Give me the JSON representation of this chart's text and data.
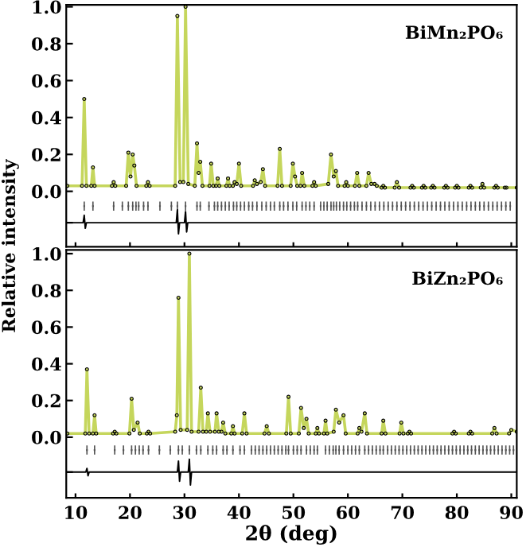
{
  "chart_data": [
    {
      "type": "line",
      "title": "BiMn₂PO₆",
      "ylabel": "Relative intensity",
      "tick_labels": "y",
      "xlim": [
        8.3,
        91
      ],
      "xticks": [
        10,
        20,
        30,
        40,
        50,
        60,
        70,
        80,
        90
      ],
      "ylim": [
        -0.3,
        1.01
      ],
      "yticks": [
        {
          "value": -0.17,
          "label": null
        },
        {
          "value": 0,
          "label": "0.0"
        },
        {
          "value": 0.2,
          "label": "0.2"
        },
        {
          "value": 0.4,
          "label": "0.4"
        },
        {
          "value": 0.6,
          "label": "0.6"
        },
        {
          "value": 0.8,
          "label": "0.8"
        },
        {
          "value": 1.0,
          "label": "1.0"
        }
      ],
      "series": [
        {
          "type": "line",
          "color": "#c5d65c",
          "x": [
            8.5,
            11.2,
            11.6,
            12.0,
            12.9,
            13.2,
            13.5,
            16.7,
            17.0,
            17.3,
            19.3,
            19.7,
            20.1,
            20.5,
            20.8,
            21.2,
            23.0,
            23.3,
            23.6,
            28.3,
            28.7,
            29.2,
            29.8,
            30.2,
            30.7,
            31.9,
            32.3,
            32.6,
            32.9,
            33.3,
            34.6,
            34.9,
            35.3,
            35.8,
            36.1,
            36.4,
            37.7,
            38.0,
            38.3,
            38.9,
            39.2,
            39.6,
            40.0,
            40.4,
            42.6,
            42.9,
            43.3,
            44.0,
            44.4,
            44.8,
            47.1,
            47.5,
            47.9,
            49.5,
            49.9,
            50.3,
            50.7,
            51.3,
            51.6,
            52.0,
            53.5,
            53.8,
            54.1,
            56.4,
            56.9,
            57.4,
            57.8,
            58.2,
            59.4,
            59.7,
            60.0,
            61.3,
            61.7,
            62.1,
            63.4,
            63.8,
            64.3,
            64.9,
            65.3,
            66.2,
            66.5,
            66.8,
            68.6,
            69.0,
            69.4,
            71.5,
            71.8,
            72.1,
            73.6,
            73.9,
            74.2,
            75.3,
            75.6,
            75.9,
            77.7,
            78.0,
            78.3,
            79.7,
            80.0,
            80.3,
            82.2,
            82.5,
            82.8,
            84.4,
            84.7,
            85.0,
            86.9,
            87.2,
            87.5,
            88.8,
            89.1,
            91
          ],
          "values": [
            0.03,
            0.03,
            0.5,
            0.03,
            0.03,
            0.13,
            0.03,
            0.03,
            0.05,
            0.03,
            0.03,
            0.21,
            0.08,
            0.2,
            0.14,
            0.03,
            0.03,
            0.05,
            0.03,
            0.03,
            0.95,
            0.05,
            0.05,
            1.0,
            0.04,
            0.03,
            0.26,
            0.1,
            0.16,
            0.03,
            0.03,
            0.15,
            0.03,
            0.03,
            0.07,
            0.03,
            0.03,
            0.07,
            0.03,
            0.03,
            0.05,
            0.04,
            0.15,
            0.03,
            0.03,
            0.06,
            0.04,
            0.05,
            0.12,
            0.03,
            0.03,
            0.23,
            0.03,
            0.03,
            0.15,
            0.08,
            0.03,
            0.03,
            0.1,
            0.03,
            0.03,
            0.05,
            0.03,
            0.04,
            0.2,
            0.08,
            0.11,
            0.03,
            0.03,
            0.05,
            0.03,
            0.03,
            0.1,
            0.03,
            0.03,
            0.1,
            0.04,
            0.04,
            0.03,
            0.02,
            0.03,
            0.02,
            0.02,
            0.05,
            0.02,
            0.02,
            0.03,
            0.02,
            0.02,
            0.03,
            0.02,
            0.02,
            0.03,
            0.02,
            0.02,
            0.03,
            0.02,
            0.02,
            0.03,
            0.02,
            0.02,
            0.03,
            0.02,
            0.02,
            0.04,
            0.02,
            0.02,
            0.03,
            0.02,
            0.02,
            0.02,
            0.02
          ]
        },
        {
          "type": "scatter",
          "marker": "circle",
          "color": "#000000",
          "x": [
            8.5,
            11.2,
            11.6,
            12.0,
            12.9,
            13.2,
            13.5,
            16.7,
            17.0,
            17.3,
            19.3,
            19.7,
            20.1,
            20.5,
            20.8,
            21.2,
            23.0,
            23.3,
            23.6,
            28.3,
            28.7,
            29.2,
            29.8,
            30.2,
            30.7,
            31.9,
            32.3,
            32.6,
            32.9,
            33.3,
            34.6,
            34.9,
            35.3,
            35.8,
            36.1,
            36.4,
            37.7,
            38.0,
            38.3,
            38.9,
            39.2,
            39.6,
            40.0,
            40.4,
            42.6,
            42.9,
            43.3,
            44.0,
            44.4,
            44.8,
            47.1,
            47.5,
            47.9,
            49.5,
            49.9,
            50.3,
            50.7,
            51.3,
            51.6,
            52.0,
            53.5,
            53.8,
            54.1,
            56.4,
            56.9,
            57.4,
            57.8,
            58.2,
            59.4,
            59.7,
            60.0,
            61.3,
            61.7,
            62.1,
            63.4,
            63.8,
            64.3,
            64.9,
            65.3,
            66.2,
            66.5,
            66.8,
            68.6,
            69.0,
            69.4,
            71.5,
            71.8,
            72.1,
            73.6,
            73.9,
            74.2,
            75.3,
            75.6,
            75.9,
            77.7,
            78.0,
            78.3,
            79.7,
            80.0,
            80.3,
            82.2,
            82.5,
            82.8,
            84.4,
            84.7,
            85.0,
            86.9,
            87.2,
            87.5,
            88.8,
            89.1,
            91
          ],
          "values": [
            0.03,
            0.03,
            0.5,
            0.03,
            0.03,
            0.13,
            0.03,
            0.03,
            0.05,
            0.03,
            0.03,
            0.21,
            0.08,
            0.2,
            0.14,
            0.03,
            0.03,
            0.05,
            0.03,
            0.03,
            0.95,
            0.05,
            0.05,
            1.0,
            0.04,
            0.03,
            0.26,
            0.1,
            0.16,
            0.03,
            0.03,
            0.15,
            0.03,
            0.03,
            0.07,
            0.03,
            0.03,
            0.07,
            0.03,
            0.03,
            0.05,
            0.04,
            0.15,
            0.03,
            0.03,
            0.06,
            0.04,
            0.05,
            0.12,
            0.03,
            0.03,
            0.23,
            0.03,
            0.03,
            0.15,
            0.08,
            0.03,
            0.03,
            0.1,
            0.03,
            0.03,
            0.05,
            0.03,
            0.04,
            0.2,
            0.08,
            0.11,
            0.03,
            0.03,
            0.05,
            0.03,
            0.03,
            0.1,
            0.03,
            0.03,
            0.1,
            0.04,
            0.04,
            0.03,
            0.02,
            0.03,
            0.02,
            0.02,
            0.05,
            0.02,
            0.02,
            0.03,
            0.02,
            0.02,
            0.03,
            0.02,
            0.02,
            0.03,
            0.02,
            0.02,
            0.03,
            0.02,
            0.02,
            0.03,
            0.02,
            0.02,
            0.03,
            0.02,
            0.02,
            0.04,
            0.02,
            0.02,
            0.03,
            0.02,
            0.02,
            0.02,
            0.02
          ]
        },
        {
          "type": "scatter",
          "marker": "square",
          "color": "#555555",
          "x": [
            11.6,
            13.2,
            17.0,
            18.6,
            19.7,
            20.5,
            21.1,
            21.6,
            22.5,
            23.3,
            25.5,
            27.6,
            28.7,
            30.2,
            32.3,
            32.9,
            34.5,
            35.5,
            36.1,
            36.8,
            37.5,
            38.2,
            39.0,
            39.6,
            40.3,
            41.0,
            41.8,
            42.5,
            43.3,
            44.2,
            45.0,
            45.8,
            46.5,
            47.5,
            48.2,
            49.0,
            49.9,
            50.6,
            51.6,
            52.3,
            53.0,
            53.8,
            55.0,
            55.6,
            56.2,
            56.9,
            57.4,
            57.9,
            58.5,
            59.2,
            59.8,
            60.5,
            61.2,
            61.8,
            62.6,
            63.4,
            64.2,
            65.0,
            65.8,
            66.6,
            67.4,
            68.2,
            69.0,
            69.8,
            70.6,
            71.4,
            72.2,
            73.0,
            73.8,
            74.6,
            75.4,
            76.2,
            77.0,
            77.8,
            78.6,
            79.4,
            80.2,
            81.0,
            81.8,
            82.6,
            83.4,
            84.2,
            85.0,
            85.8,
            86.6,
            87.4,
            88.2,
            89.0,
            89.8
          ],
          "values": [
            -0.08,
            -0.08,
            -0.08,
            -0.08,
            -0.08,
            -0.08,
            -0.08,
            -0.08,
            -0.08,
            -0.08,
            -0.08,
            -0.08,
            -0.08,
            -0.08,
            -0.08,
            -0.08,
            -0.08,
            -0.08,
            -0.08,
            -0.08,
            -0.08,
            -0.08,
            -0.08,
            -0.08,
            -0.08,
            -0.08,
            -0.08,
            -0.08,
            -0.08,
            -0.08,
            -0.08,
            -0.08,
            -0.08,
            -0.08,
            -0.08,
            -0.08,
            -0.08,
            -0.08,
            -0.08,
            -0.08,
            -0.08,
            -0.08,
            -0.08,
            -0.08,
            -0.08,
            -0.08,
            -0.08,
            -0.08,
            -0.08,
            -0.08,
            -0.08,
            -0.08,
            -0.08,
            -0.08,
            -0.08,
            -0.08,
            -0.08,
            -0.08,
            -0.08,
            -0.08,
            -0.08,
            -0.08,
            -0.08,
            -0.08,
            -0.08,
            -0.08,
            -0.08,
            -0.08,
            -0.08,
            -0.08,
            -0.08,
            -0.08,
            -0.08,
            -0.08,
            -0.08,
            -0.08,
            -0.08,
            -0.08,
            -0.08,
            -0.08,
            -0.08,
            -0.08,
            -0.08,
            -0.08,
            -0.08,
            -0.08,
            -0.08,
            -0.08,
            -0.08
          ],
          "errors": [
            0.025,
            0.025,
            0.025,
            0.025,
            0.025,
            0.025,
            0.025,
            0.025,
            0.025,
            0.025,
            0.025,
            0.025,
            0.025,
            0.025,
            0.025,
            0.025,
            0.025,
            0.025,
            0.025,
            0.025,
            0.025,
            0.025,
            0.025,
            0.025,
            0.025,
            0.025,
            0.025,
            0.025,
            0.025,
            0.025,
            0.025,
            0.025,
            0.025,
            0.025,
            0.025,
            0.025,
            0.025,
            0.025,
            0.025,
            0.025,
            0.025,
            0.025,
            0.025,
            0.025,
            0.025,
            0.025,
            0.025,
            0.025,
            0.025,
            0.025,
            0.025,
            0.025,
            0.025,
            0.025,
            0.025,
            0.025,
            0.025,
            0.025,
            0.025,
            0.025,
            0.025,
            0.025,
            0.025,
            0.025,
            0.025,
            0.025,
            0.025,
            0.025,
            0.025,
            0.025,
            0.025,
            0.025,
            0.025,
            0.025,
            0.025,
            0.025,
            0.025,
            0.025,
            0.025,
            0.025,
            0.025,
            0.025,
            0.025,
            0.025,
            0.025,
            0.025,
            0.025,
            0.025,
            0.025
          ]
        },
        {
          "type": "line",
          "color": "#000000",
          "x": [
            8.5,
            11.4,
            11.6,
            11.8,
            12.0,
            28.5,
            28.7,
            28.9,
            29.1,
            30.0,
            30.2,
            30.4,
            30.6,
            91
          ],
          "values": [
            -0.17,
            -0.17,
            -0.13,
            -0.2,
            -0.17,
            -0.17,
            -0.1,
            -0.23,
            -0.17,
            -0.17,
            -0.11,
            -0.22,
            -0.17,
            -0.17
          ]
        }
      ]
    },
    {
      "type": "line",
      "title": "BiZn₂PO₆",
      "xlabel": "2θ (deg)",
      "xlim": [
        8.3,
        91
      ],
      "xticks": [
        10,
        20,
        30,
        40,
        50,
        60,
        70,
        80,
        90
      ],
      "ylim": [
        -0.33,
        1.02
      ],
      "yticks": [
        {
          "value": -0.19,
          "label": null
        },
        {
          "value": 0,
          "label": "0.0"
        },
        {
          "value": 0.2,
          "label": "0.2"
        },
        {
          "value": 0.4,
          "label": "0.4"
        },
        {
          "value": 0.6,
          "label": "0.6"
        },
        {
          "value": 0.8,
          "label": "0.8"
        },
        {
          "value": 1.0,
          "label": "1.0"
        }
      ],
      "series": [
        {
          "type": "line",
          "color": "#c5d65c",
          "x": [
            8.5,
            11.8,
            12.1,
            12.5,
            13.2,
            13.5,
            13.8,
            16.9,
            17.2,
            17.5,
            19.9,
            20.3,
            20.7,
            21.4,
            21.8,
            23.1,
            23.4,
            23.7,
            28.3,
            28.6,
            28.9,
            29.3,
            30.5,
            30.9,
            31.3,
            32.6,
            33.0,
            33.4,
            34.0,
            34.3,
            34.7,
            35.6,
            35.9,
            36.3,
            36.8,
            37.1,
            37.5,
            38.6,
            38.9,
            39.2,
            40.6,
            41.0,
            41.4,
            44.7,
            45.1,
            45.5,
            48.7,
            49.1,
            49.5,
            51.0,
            51.4,
            51.9,
            52.4,
            52.8,
            54.1,
            54.4,
            54.7,
            55.6,
            55.9,
            56.2,
            57.4,
            57.8,
            58.4,
            59.2,
            59.6,
            61.8,
            62.1,
            62.5,
            63.1,
            63.5,
            66.2,
            66.5,
            66.9,
            69.5,
            69.8,
            70.2,
            71.0,
            71.3,
            71.6,
            79.2,
            79.5,
            79.8,
            82.2,
            82.5,
            82.8,
            86.5,
            86.9,
            87.3,
            89.6,
            90.0,
            91
          ],
          "values": [
            0.02,
            0.02,
            0.37,
            0.02,
            0.02,
            0.12,
            0.02,
            0.02,
            0.03,
            0.02,
            0.02,
            0.21,
            0.04,
            0.08,
            0.02,
            0.02,
            0.03,
            0.02,
            0.03,
            0.12,
            0.76,
            0.04,
            0.04,
            1.0,
            0.03,
            0.03,
            0.27,
            0.03,
            0.03,
            0.13,
            0.03,
            0.03,
            0.13,
            0.03,
            0.03,
            0.08,
            0.02,
            0.02,
            0.06,
            0.02,
            0.02,
            0.13,
            0.02,
            0.02,
            0.06,
            0.02,
            0.02,
            0.22,
            0.02,
            0.02,
            0.16,
            0.05,
            0.1,
            0.02,
            0.02,
            0.05,
            0.02,
            0.02,
            0.09,
            0.02,
            0.03,
            0.15,
            0.08,
            0.12,
            0.02,
            0.02,
            0.05,
            0.03,
            0.13,
            0.02,
            0.02,
            0.09,
            0.02,
            0.02,
            0.08,
            0.02,
            0.02,
            0.03,
            0.02,
            0.02,
            0.03,
            0.02,
            0.02,
            0.03,
            0.02,
            0.02,
            0.05,
            0.02,
            0.02,
            0.04,
            0.03
          ]
        },
        {
          "type": "scatter",
          "marker": "circle",
          "color": "#000000",
          "x": [
            8.5,
            11.8,
            12.1,
            12.5,
            13.2,
            13.5,
            13.8,
            16.9,
            17.2,
            17.5,
            19.9,
            20.3,
            20.7,
            21.4,
            21.8,
            23.1,
            23.4,
            23.7,
            28.3,
            28.6,
            28.9,
            29.3,
            30.5,
            30.9,
            31.3,
            32.6,
            33.0,
            33.4,
            34.0,
            34.3,
            34.7,
            35.6,
            35.9,
            36.3,
            36.8,
            37.1,
            37.5,
            38.6,
            38.9,
            39.2,
            40.6,
            41.0,
            41.4,
            44.7,
            45.1,
            45.5,
            48.7,
            49.1,
            49.5,
            51.0,
            51.4,
            51.9,
            52.4,
            52.8,
            54.1,
            54.4,
            54.7,
            55.6,
            55.9,
            56.2,
            57.4,
            57.8,
            58.4,
            59.2,
            59.6,
            61.8,
            62.1,
            62.5,
            63.1,
            63.5,
            66.2,
            66.5,
            66.9,
            69.5,
            69.8,
            70.2,
            71.0,
            71.3,
            71.6,
            79.2,
            79.5,
            79.8,
            82.2,
            82.5,
            82.8,
            86.5,
            86.9,
            87.3,
            89.6,
            90.0,
            91
          ],
          "values": [
            0.02,
            0.02,
            0.37,
            0.02,
            0.02,
            0.12,
            0.02,
            0.02,
            0.03,
            0.02,
            0.02,
            0.21,
            0.04,
            0.08,
            0.02,
            0.02,
            0.03,
            0.02,
            0.03,
            0.12,
            0.76,
            0.04,
            0.04,
            1.0,
            0.03,
            0.03,
            0.27,
            0.03,
            0.03,
            0.13,
            0.03,
            0.03,
            0.13,
            0.03,
            0.03,
            0.08,
            0.02,
            0.02,
            0.06,
            0.02,
            0.02,
            0.13,
            0.02,
            0.02,
            0.06,
            0.02,
            0.02,
            0.22,
            0.02,
            0.02,
            0.16,
            0.05,
            0.1,
            0.02,
            0.02,
            0.05,
            0.02,
            0.02,
            0.09,
            0.02,
            0.03,
            0.15,
            0.08,
            0.12,
            0.02,
            0.02,
            0.05,
            0.03,
            0.13,
            0.02,
            0.02,
            0.09,
            0.02,
            0.02,
            0.08,
            0.02,
            0.02,
            0.03,
            0.02,
            0.02,
            0.03,
            0.02,
            0.02,
            0.03,
            0.02,
            0.02,
            0.05,
            0.02,
            0.02,
            0.04,
            0.03
          ]
        },
        {
          "type": "scatter",
          "marker": "square",
          "color": "#555555",
          "x": [
            12.1,
            13.5,
            17.2,
            18.8,
            20.3,
            21.0,
            21.7,
            22.4,
            23.4,
            25.4,
            27.4,
            28.9,
            29.6,
            30.9,
            32.2,
            33.0,
            34.3,
            35.2,
            35.9,
            37.1,
            37.8,
            38.9,
            40.2,
            41.0,
            42.3,
            43.0,
            43.7,
            44.4,
            45.1,
            45.8,
            46.5,
            47.2,
            47.9,
            48.6,
            49.1,
            50.0,
            50.7,
            51.4,
            52.4,
            53.1,
            53.8,
            54.4,
            55.9,
            56.6,
            57.3,
            57.8,
            58.4,
            59.2,
            60.0,
            60.7,
            61.4,
            62.1,
            63.1,
            63.8,
            64.5,
            65.2,
            65.9,
            66.5,
            67.3,
            68.0,
            68.7,
            69.4,
            70.1,
            70.8,
            71.5,
            72.2,
            72.9,
            73.6,
            74.3,
            75.0,
            75.7,
            76.4,
            77.1,
            77.8,
            78.5,
            79.2,
            79.9,
            80.6,
            81.3,
            82.0,
            82.7,
            83.4,
            84.1,
            84.8,
            85.5,
            86.2,
            86.9,
            87.6,
            88.3,
            89.0,
            89.7,
            90.4
          ],
          "values": [
            -0.07,
            -0.07,
            -0.07,
            -0.07,
            -0.07,
            -0.07,
            -0.07,
            -0.07,
            -0.07,
            -0.07,
            -0.07,
            -0.07,
            -0.07,
            -0.07,
            -0.07,
            -0.07,
            -0.07,
            -0.07,
            -0.07,
            -0.07,
            -0.07,
            -0.07,
            -0.07,
            -0.07,
            -0.07,
            -0.07,
            -0.07,
            -0.07,
            -0.07,
            -0.07,
            -0.07,
            -0.07,
            -0.07,
            -0.07,
            -0.07,
            -0.07,
            -0.07,
            -0.07,
            -0.07,
            -0.07,
            -0.07,
            -0.07,
            -0.07,
            -0.07,
            -0.07,
            -0.07,
            -0.07,
            -0.07,
            -0.07,
            -0.07,
            -0.07,
            -0.07,
            -0.07,
            -0.07,
            -0.07,
            -0.07,
            -0.07,
            -0.07,
            -0.07,
            -0.07,
            -0.07,
            -0.07,
            -0.07,
            -0.07,
            -0.07,
            -0.07,
            -0.07,
            -0.07,
            -0.07,
            -0.07,
            -0.07,
            -0.07,
            -0.07,
            -0.07,
            -0.07,
            -0.07,
            -0.07,
            -0.07,
            -0.07,
            -0.07,
            -0.07,
            -0.07,
            -0.07,
            -0.07,
            -0.07,
            -0.07,
            -0.07,
            -0.07,
            -0.07,
            -0.07,
            -0.07,
            -0.07
          ],
          "errors": [
            0.025,
            0.025,
            0.025,
            0.025,
            0.025,
            0.025,
            0.025,
            0.025,
            0.025,
            0.025,
            0.025,
            0.025,
            0.025,
            0.025,
            0.025,
            0.025,
            0.025,
            0.025,
            0.025,
            0.025,
            0.025,
            0.025,
            0.025,
            0.025,
            0.025,
            0.025,
            0.025,
            0.025,
            0.025,
            0.025,
            0.025,
            0.025,
            0.025,
            0.025,
            0.025,
            0.025,
            0.025,
            0.025,
            0.025,
            0.025,
            0.025,
            0.025,
            0.025,
            0.025,
            0.025,
            0.025,
            0.025,
            0.025,
            0.025,
            0.025,
            0.025,
            0.025,
            0.025,
            0.025,
            0.025,
            0.025,
            0.025,
            0.025,
            0.025,
            0.025,
            0.025,
            0.025,
            0.025,
            0.025,
            0.025,
            0.025,
            0.025,
            0.025,
            0.025,
            0.025,
            0.025,
            0.025,
            0.025,
            0.025,
            0.025,
            0.025,
            0.025,
            0.025,
            0.025,
            0.025,
            0.025,
            0.025,
            0.025,
            0.025,
            0.025,
            0.025,
            0.025,
            0.025,
            0.025,
            0.025,
            0.025,
            0.025
          ]
        },
        {
          "type": "line",
          "color": "#000000",
          "x": [
            8.5,
            11.9,
            12.1,
            12.3,
            12.5,
            28.7,
            28.9,
            29.1,
            29.3,
            30.7,
            30.9,
            31.1,
            31.3,
            91
          ],
          "values": [
            -0.19,
            -0.19,
            -0.17,
            -0.21,
            -0.19,
            -0.19,
            -0.13,
            -0.24,
            -0.19,
            -0.19,
            -0.12,
            -0.26,
            -0.19,
            -0.19
          ]
        }
      ]
    }
  ]
}
